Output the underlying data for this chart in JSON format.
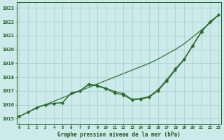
{
  "xlabel": "Graphe pression niveau de la mer (hPa)",
  "bg_color": "#cceaea",
  "grid_color": "#aed4d4",
  "line_color": "#2d6a2d",
  "x_ticks": [
    0,
    1,
    2,
    3,
    4,
    5,
    6,
    7,
    8,
    9,
    10,
    11,
    12,
    13,
    14,
    15,
    16,
    17,
    18,
    19,
    20,
    21,
    22,
    23
  ],
  "y_ticks": [
    1015,
    1016,
    1017,
    1018,
    1019,
    1020,
    1021,
    1022,
    1023
  ],
  "ylim": [
    1014.6,
    1023.4
  ],
  "xlim": [
    -0.3,
    23.3
  ],
  "line_straight": [
    1015.15,
    1015.45,
    1015.75,
    1016.0,
    1016.25,
    1016.5,
    1016.75,
    1017.0,
    1017.25,
    1017.5,
    1017.75,
    1018.0,
    1018.25,
    1018.5,
    1018.75,
    1019.0,
    1019.3,
    1019.65,
    1020.0,
    1020.4,
    1020.9,
    1021.4,
    1021.9,
    1022.5
  ],
  "line_marker1": [
    1015.15,
    1015.45,
    1015.8,
    1016.0,
    1016.1,
    1016.15,
    1016.85,
    1017.0,
    1017.5,
    1017.4,
    1017.2,
    1016.95,
    1016.8,
    1016.4,
    1016.45,
    1016.6,
    1017.1,
    1017.8,
    1018.6,
    1019.3,
    1020.3,
    1021.3,
    1022.0,
    1022.5
  ],
  "line_marker2": [
    1015.15,
    1015.45,
    1015.8,
    1016.0,
    1016.1,
    1016.15,
    1016.85,
    1017.0,
    1017.45,
    1017.35,
    1017.15,
    1016.85,
    1016.7,
    1016.35,
    1016.4,
    1016.55,
    1017.0,
    1017.7,
    1018.5,
    1019.25,
    1020.25,
    1021.25,
    1022.0,
    1022.5
  ]
}
